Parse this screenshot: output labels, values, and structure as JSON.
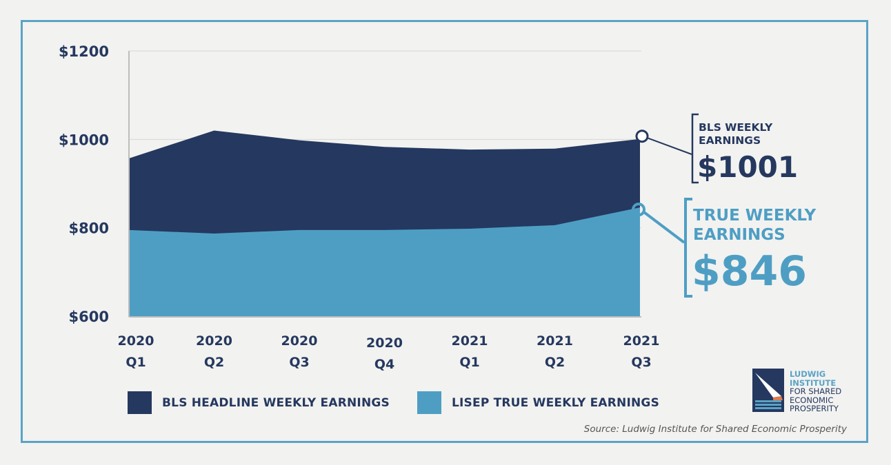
{
  "chart_data": {
    "type": "area",
    "categories": [
      "2020 Q1",
      "2020 Q2",
      "2020 Q3",
      "2020 Q4",
      "2021 Q1",
      "2021 Q2",
      "2021 Q3"
    ],
    "category_lines": [
      [
        "2020",
        "Q1"
      ],
      [
        "2020",
        "Q2"
      ],
      [
        "2020",
        "Q3"
      ],
      [
        "2020",
        "Q4"
      ],
      [
        "2021",
        "Q1"
      ],
      [
        "2021",
        "Q2"
      ],
      [
        "2021",
        "Q3"
      ]
    ],
    "series": [
      {
        "name": "BLS HEADLINE WEEKLY EARNINGS",
        "color": "#25385f",
        "values": [
          957,
          1020,
          998,
          983,
          977,
          979,
          1001
        ]
      },
      {
        "name": "LISEP TRUE WEEKLY EARNINGS",
        "color": "#4e9ec4",
        "values": [
          795,
          787,
          795,
          795,
          798,
          806,
          846
        ]
      }
    ],
    "ylim": [
      600,
      1200
    ],
    "yticks": [
      600,
      800,
      1000,
      1200
    ],
    "ytick_labels": [
      "$600",
      "$800",
      "$1000",
      "$1200"
    ],
    "grid": true,
    "legend": "bottom",
    "callouts": [
      {
        "series": 0,
        "lines": [
          "BLS WEEKLY",
          "EARNINGS"
        ],
        "value_text": "$1001",
        "color": "#25385f"
      },
      {
        "series": 1,
        "lines": [
          "TRUE WEEKLY",
          "EARNINGS"
        ],
        "value_text": "$846",
        "color": "#4e9ec4"
      }
    ]
  },
  "logo": {
    "lines": [
      "LUDWIG",
      "INSTITUTE",
      "FOR SHARED",
      "ECONOMIC",
      "PROSPERITY"
    ]
  },
  "source": "Source: Ludwig Institute for Shared Economic Prosperity"
}
